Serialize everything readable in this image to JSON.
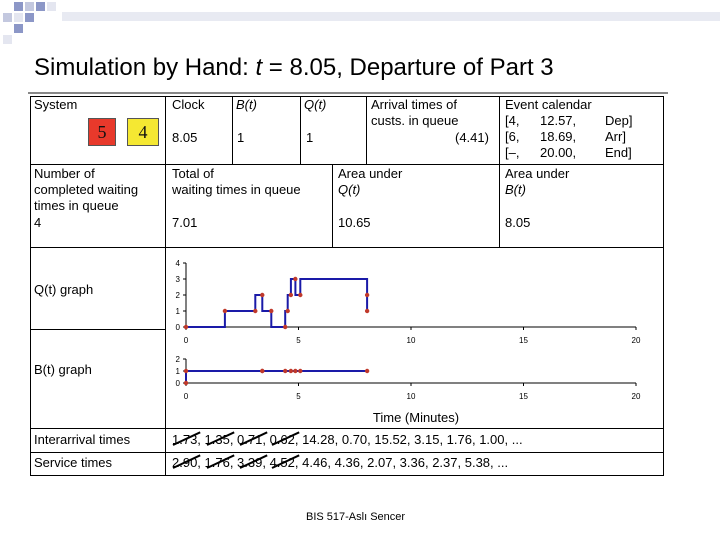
{
  "title": {
    "prefix": "Simulation by Hand: ",
    "var": "t",
    "suffix": " = 8.05, Departure of Part 3"
  },
  "table": {
    "system_label": "System",
    "queue_part": "5",
    "server_part": "4",
    "clock_label": "Clock",
    "clock_value": "8.05",
    "bt_label": "B(t)",
    "bt_value": "1",
    "qt_label": "Q(t)",
    "qt_value": "1",
    "arrivals_label_1": "Arrival times of",
    "arrivals_label_2": "custs. in queue",
    "arrivals_value": "(4.41)",
    "calendar_label": "Event calendar",
    "calendar_rows": [
      [
        "[4,",
        "12.57,",
        "Dep]"
      ],
      [
        "[6,",
        "18.69,",
        "Arr]"
      ],
      [
        "[–,",
        "20.00,",
        "End]"
      ]
    ],
    "completed_label_1": "Number of",
    "completed_label_2": "completed waiting",
    "completed_label_3": "times in queue",
    "completed_value": "4",
    "total_wait_label_1": "Total of",
    "total_wait_label_2": "waiting times in queue",
    "total_wait_value": "7.01",
    "area_q_label_1": "Area under",
    "area_q_label_2": "Q(t)",
    "area_q_value": "10.65",
    "area_b_label_1": "Area under",
    "area_b_label_2": "B(t)",
    "area_b_value": "8.05",
    "qgraph_label": "Q(t) graph",
    "bgraph_label": "B(t) graph",
    "interarrival_label": "Interarrival times",
    "interarrival_values": "1.73, 1.35, 0.71, 0.62, 14.28, 0.70, 15.52, 3.15, 1.76, 1.00, ...",
    "service_label": "Service times",
    "service_values": "2.90, 1.76, 3.39, 4.52, 4.46, 4.36, 2.07, 3.36, 2.37, 5.38, ..."
  },
  "chart_data": [
    {
      "type": "line",
      "name": "Q(t) graph",
      "xlim": [
        0,
        20
      ],
      "ylim": [
        0,
        4
      ],
      "xticks": [
        0,
        5,
        10,
        15,
        20
      ],
      "yticks": [
        0,
        1,
        2,
        3,
        4
      ],
      "step_points": [
        [
          0,
          0
        ],
        [
          1.73,
          0
        ],
        [
          1.73,
          1
        ],
        [
          3.08,
          1
        ],
        [
          3.08,
          2
        ],
        [
          3.39,
          2
        ],
        [
          3.39,
          1
        ],
        [
          3.79,
          1
        ],
        [
          3.79,
          0
        ],
        [
          4.41,
          0
        ],
        [
          4.41,
          1
        ],
        [
          4.52,
          1
        ],
        [
          4.52,
          2
        ],
        [
          4.66,
          2
        ],
        [
          4.66,
          3
        ],
        [
          4.86,
          3
        ],
        [
          4.86,
          2
        ],
        [
          5.08,
          2
        ],
        [
          5.08,
          3
        ],
        [
          8.05,
          3
        ],
        [
          8.05,
          2
        ],
        [
          8.05,
          1
        ]
      ],
      "markers": [
        [
          0,
          0
        ],
        [
          1.73,
          1
        ],
        [
          3.08,
          1
        ],
        [
          3.39,
          2
        ],
        [
          3.79,
          1
        ],
        [
          4.41,
          0
        ],
        [
          4.52,
          1
        ],
        [
          4.66,
          2
        ],
        [
          4.86,
          3
        ],
        [
          5.08,
          2
        ],
        [
          8.05,
          2
        ],
        [
          8.05,
          1
        ]
      ]
    },
    {
      "type": "line",
      "name": "B(t) graph",
      "xlabel": "Time (Minutes)",
      "xlim": [
        0,
        20
      ],
      "ylim": [
        0,
        2
      ],
      "xticks": [
        0,
        5,
        10,
        15,
        20
      ],
      "yticks": [
        0,
        1,
        2
      ],
      "step_points": [
        [
          0,
          0
        ],
        [
          0,
          1
        ],
        [
          8.05,
          1
        ]
      ],
      "markers": [
        [
          0,
          0
        ],
        [
          0,
          1
        ],
        [
          3.39,
          1
        ],
        [
          3.39,
          1
        ],
        [
          4.41,
          1
        ],
        [
          4.66,
          1
        ],
        [
          4.86,
          1
        ],
        [
          5.08,
          1
        ],
        [
          8.05,
          1
        ]
      ]
    }
  ],
  "footer": "BIS 517-Aslı Sencer",
  "colors": {
    "queue_box": "#e8392b",
    "server_box": "#f5e832",
    "series": "#1a1aa8",
    "marker": "#c0392b"
  }
}
